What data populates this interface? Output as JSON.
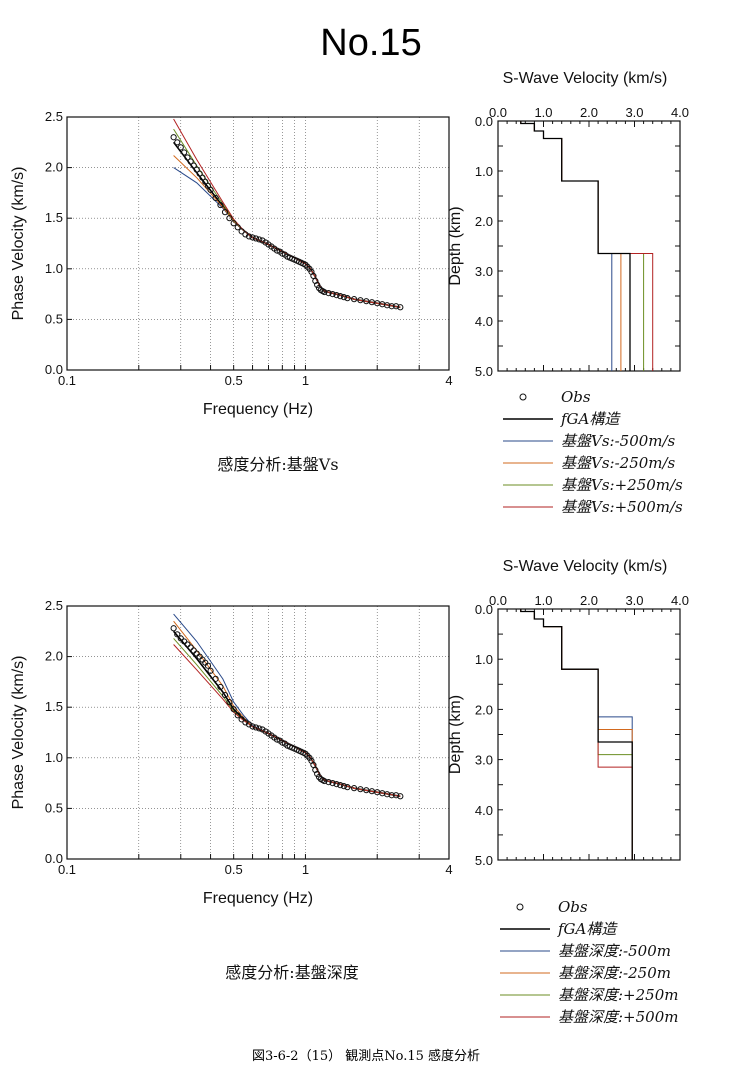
{
  "page_title": "No.15",
  "footer_caption": "図3-6-2（15） 観測点No.15 感度分析",
  "colors": {
    "fga": "#000000",
    "minus500": "#2a4a8a",
    "minus250": "#d2691e",
    "plus250": "#6b8e23",
    "plus500": "#b22222",
    "obs": "#111111"
  },
  "chart_data": [
    {
      "id": "top-dispersion",
      "type": "line",
      "xlabel": "Frequency (Hz)",
      "ylabel": "Phase Velocity (km/s)",
      "xscale": "log",
      "xlim": [
        0.1,
        4
      ],
      "ylim": [
        0,
        2.5
      ],
      "xticks": [
        "0.1",
        "0.5",
        "1",
        "4"
      ],
      "yticks": [
        "0.0",
        "0.5",
        "1.0",
        "1.5",
        "2.0",
        "2.5"
      ],
      "grid": true,
      "caption": "感度分析:基盤Vs",
      "obs": {
        "x": [
          0.28,
          0.29,
          0.3,
          0.31,
          0.32,
          0.33,
          0.34,
          0.35,
          0.36,
          0.37,
          0.38,
          0.39,
          0.4,
          0.42,
          0.44,
          0.46,
          0.48,
          0.5,
          0.52,
          0.54,
          0.56,
          0.58,
          0.6,
          0.62,
          0.64,
          0.66,
          0.68,
          0.7,
          0.72,
          0.74,
          0.76,
          0.78,
          0.8,
          0.82,
          0.84,
          0.86,
          0.88,
          0.9,
          0.92,
          0.94,
          0.96,
          0.98,
          1.0,
          1.02,
          1.04,
          1.06,
          1.08,
          1.1,
          1.12,
          1.14,
          1.16,
          1.18,
          1.2,
          1.25,
          1.3,
          1.35,
          1.4,
          1.45,
          1.5,
          1.6,
          1.7,
          1.8,
          1.9,
          2.0,
          2.1,
          2.2,
          2.3,
          2.4,
          2.5
        ],
        "y": [
          2.3,
          2.25,
          2.2,
          2.15,
          2.1,
          2.06,
          2.02,
          1.98,
          1.94,
          1.9,
          1.86,
          1.82,
          1.78,
          1.7,
          1.63,
          1.56,
          1.5,
          1.45,
          1.41,
          1.37,
          1.34,
          1.32,
          1.31,
          1.3,
          1.29,
          1.28,
          1.26,
          1.24,
          1.22,
          1.2,
          1.18,
          1.17,
          1.15,
          1.14,
          1.12,
          1.11,
          1.1,
          1.09,
          1.08,
          1.07,
          1.06,
          1.05,
          1.04,
          1.02,
          1.0,
          0.97,
          0.93,
          0.88,
          0.84,
          0.81,
          0.79,
          0.78,
          0.77,
          0.76,
          0.75,
          0.74,
          0.73,
          0.72,
          0.71,
          0.7,
          0.69,
          0.68,
          0.67,
          0.66,
          0.65,
          0.64,
          0.63,
          0.63,
          0.62
        ]
      },
      "series": [
        {
          "name": "fGA構造",
          "key": "fga",
          "x": [
            0.28,
            0.35,
            0.45,
            0.5,
            0.55,
            0.6,
            0.7,
            0.8,
            0.9,
            1.0,
            1.05,
            1.1,
            1.15,
            1.2,
            1.4,
            1.6,
            2.0,
            2.5
          ],
          "y": [
            2.25,
            1.95,
            1.62,
            1.47,
            1.38,
            1.31,
            1.24,
            1.17,
            1.11,
            1.05,
            1.0,
            0.92,
            0.83,
            0.78,
            0.74,
            0.7,
            0.66,
            0.62
          ]
        },
        {
          "name": "基盤Vs:-500m/s",
          "key": "minus500",
          "x": [
            0.28,
            0.35,
            0.45,
            0.5,
            0.55,
            0.6,
            0.7,
            0.8,
            0.9,
            1.0,
            1.05,
            1.1,
            1.15,
            1.2,
            1.4,
            1.6,
            2.0,
            2.5
          ],
          "y": [
            2.0,
            1.85,
            1.6,
            1.47,
            1.38,
            1.31,
            1.24,
            1.17,
            1.11,
            1.05,
            1.0,
            0.92,
            0.83,
            0.78,
            0.74,
            0.7,
            0.66,
            0.62
          ]
        },
        {
          "name": "基盤Vs:-250m/s",
          "key": "minus250",
          "x": [
            0.28,
            0.35,
            0.45,
            0.5,
            0.55,
            0.6,
            0.7,
            0.8,
            0.9,
            1.0,
            1.05,
            1.1,
            1.15,
            1.2,
            1.4,
            1.6,
            2.0,
            2.5
          ],
          "y": [
            2.12,
            1.9,
            1.61,
            1.47,
            1.38,
            1.31,
            1.24,
            1.17,
            1.11,
            1.05,
            1.0,
            0.92,
            0.83,
            0.78,
            0.74,
            0.7,
            0.66,
            0.62
          ]
        },
        {
          "name": "基盤Vs:+250m/s",
          "key": "plus250",
          "x": [
            0.28,
            0.35,
            0.45,
            0.5,
            0.55,
            0.6,
            0.7,
            0.8,
            0.9,
            1.0,
            1.05,
            1.1,
            1.15,
            1.2,
            1.4,
            1.6,
            2.0,
            2.5
          ],
          "y": [
            2.38,
            2.02,
            1.64,
            1.48,
            1.38,
            1.31,
            1.24,
            1.17,
            1.11,
            1.05,
            1.0,
            0.92,
            0.83,
            0.78,
            0.74,
            0.7,
            0.66,
            0.62
          ]
        },
        {
          "name": "基盤Vs:+500m/s",
          "key": "plus500",
          "x": [
            0.28,
            0.35,
            0.45,
            0.5,
            0.55,
            0.6,
            0.7,
            0.8,
            0.9,
            1.0,
            1.05,
            1.1,
            1.15,
            1.2,
            1.4,
            1.6,
            2.0,
            2.5
          ],
          "y": [
            2.48,
            2.08,
            1.66,
            1.49,
            1.38,
            1.31,
            1.24,
            1.17,
            1.11,
            1.05,
            1.0,
            0.92,
            0.83,
            0.78,
            0.74,
            0.7,
            0.66,
            0.62
          ]
        }
      ]
    },
    {
      "id": "top-profile",
      "type": "line",
      "title": "S-Wave Velocity (km/s)",
      "ylabel": "Depth (km)",
      "xlim": [
        0,
        4
      ],
      "ylim": [
        0,
        5
      ],
      "xticks": [
        "0.0",
        "1.0",
        "2.0",
        "3.0",
        "4.0"
      ],
      "yticks": [
        "0.0",
        "1.0",
        "2.0",
        "3.0",
        "4.0",
        "5.0"
      ],
      "series": [
        {
          "key": "fga",
          "v": [
            0.5,
            0.8,
            1.0,
            1.4,
            2.2,
            2.9
          ],
          "depth_bottoms": [
            0.05,
            0.2,
            0.35,
            1.2,
            2.65,
            5.0
          ]
        },
        {
          "key": "minus500",
          "v": [
            0.5,
            0.8,
            1.0,
            1.4,
            2.2,
            2.5
          ],
          "depth_bottoms": [
            0.05,
            0.2,
            0.35,
            1.2,
            2.65,
            5.0
          ]
        },
        {
          "key": "minus250",
          "v": [
            0.5,
            0.8,
            1.0,
            1.4,
            2.2,
            2.7
          ],
          "depth_bottoms": [
            0.05,
            0.2,
            0.35,
            1.2,
            2.65,
            5.0
          ]
        },
        {
          "key": "plus250",
          "v": [
            0.5,
            0.8,
            1.0,
            1.4,
            2.2,
            3.2
          ],
          "depth_bottoms": [
            0.05,
            0.2,
            0.35,
            1.2,
            2.65,
            5.0
          ]
        },
        {
          "key": "plus500",
          "v": [
            0.5,
            0.8,
            1.0,
            1.4,
            2.2,
            3.4
          ],
          "depth_bottoms": [
            0.05,
            0.2,
            0.35,
            1.2,
            2.65,
            5.0
          ]
        }
      ]
    },
    {
      "id": "bottom-dispersion",
      "type": "line",
      "xlabel": "Frequency (Hz)",
      "ylabel": "Phase Velocity (km/s)",
      "xscale": "log",
      "xlim": [
        0.1,
        4
      ],
      "ylim": [
        0,
        2.5
      ],
      "xticks": [
        "0.1",
        "0.5",
        "1",
        "4"
      ],
      "yticks": [
        "0.0",
        "0.5",
        "1.0",
        "1.5",
        "2.0",
        "2.5"
      ],
      "grid": true,
      "caption": "感度分析:基盤深度",
      "obs": {
        "x": [
          0.28,
          0.29,
          0.3,
          0.31,
          0.32,
          0.33,
          0.34,
          0.35,
          0.36,
          0.37,
          0.38,
          0.39,
          0.4,
          0.42,
          0.44,
          0.46,
          0.48,
          0.5,
          0.52,
          0.54,
          0.56,
          0.58,
          0.6,
          0.62,
          0.64,
          0.66,
          0.68,
          0.7,
          0.72,
          0.74,
          0.76,
          0.78,
          0.8,
          0.82,
          0.84,
          0.86,
          0.88,
          0.9,
          0.92,
          0.94,
          0.96,
          0.98,
          1.0,
          1.02,
          1.04,
          1.06,
          1.08,
          1.1,
          1.12,
          1.14,
          1.16,
          1.18,
          1.2,
          1.25,
          1.3,
          1.35,
          1.4,
          1.45,
          1.5,
          1.6,
          1.7,
          1.8,
          1.9,
          2.0,
          2.1,
          2.2,
          2.3,
          2.4,
          2.5
        ],
        "y": [
          2.28,
          2.22,
          2.18,
          2.15,
          2.12,
          2.09,
          2.06,
          2.03,
          2.0,
          1.97,
          1.94,
          1.91,
          1.86,
          1.78,
          1.7,
          1.62,
          1.55,
          1.48,
          1.42,
          1.38,
          1.35,
          1.33,
          1.31,
          1.3,
          1.29,
          1.28,
          1.26,
          1.24,
          1.22,
          1.2,
          1.18,
          1.17,
          1.15,
          1.14,
          1.12,
          1.11,
          1.1,
          1.09,
          1.08,
          1.07,
          1.06,
          1.05,
          1.04,
          1.02,
          1.0,
          0.97,
          0.93,
          0.88,
          0.84,
          0.81,
          0.79,
          0.78,
          0.77,
          0.76,
          0.75,
          0.74,
          0.73,
          0.72,
          0.71,
          0.7,
          0.69,
          0.68,
          0.67,
          0.66,
          0.65,
          0.64,
          0.63,
          0.63,
          0.62
        ]
      },
      "series": [
        {
          "name": "fGA構造",
          "key": "fga",
          "x": [
            0.28,
            0.35,
            0.45,
            0.5,
            0.55,
            0.6,
            0.7,
            0.8,
            0.9,
            1.0,
            1.05,
            1.1,
            1.15,
            1.2,
            1.4,
            1.6,
            2.0,
            2.5
          ],
          "y": [
            2.25,
            1.98,
            1.65,
            1.48,
            1.38,
            1.31,
            1.24,
            1.17,
            1.11,
            1.05,
            1.0,
            0.92,
            0.83,
            0.78,
            0.74,
            0.7,
            0.66,
            0.62
          ]
        },
        {
          "name": "基盤深度:-500m",
          "key": "minus500",
          "x": [
            0.28,
            0.35,
            0.45,
            0.5,
            0.55,
            0.6,
            0.7,
            0.8,
            0.9,
            1.0,
            1.05,
            1.1,
            1.15,
            1.2,
            1.4,
            1.6,
            2.0,
            2.5
          ],
          "y": [
            2.42,
            2.15,
            1.78,
            1.55,
            1.42,
            1.32,
            1.24,
            1.17,
            1.11,
            1.05,
            1.0,
            0.92,
            0.83,
            0.78,
            0.74,
            0.7,
            0.66,
            0.62
          ]
        },
        {
          "name": "基盤深度:-250m",
          "key": "minus250",
          "x": [
            0.28,
            0.35,
            0.45,
            0.5,
            0.55,
            0.6,
            0.7,
            0.8,
            0.9,
            1.0,
            1.05,
            1.1,
            1.15,
            1.2,
            1.4,
            1.6,
            2.0,
            2.5
          ],
          "y": [
            2.35,
            2.06,
            1.71,
            1.51,
            1.4,
            1.31,
            1.24,
            1.17,
            1.11,
            1.05,
            1.0,
            0.92,
            0.83,
            0.78,
            0.74,
            0.7,
            0.66,
            0.62
          ]
        },
        {
          "name": "基盤深度:+250m",
          "key": "plus250",
          "x": [
            0.28,
            0.35,
            0.45,
            0.5,
            0.55,
            0.6,
            0.7,
            0.8,
            0.9,
            1.0,
            1.05,
            1.1,
            1.15,
            1.2,
            1.4,
            1.6,
            2.0,
            2.5
          ],
          "y": [
            2.18,
            1.92,
            1.61,
            1.46,
            1.37,
            1.31,
            1.24,
            1.17,
            1.11,
            1.05,
            1.0,
            0.92,
            0.83,
            0.78,
            0.74,
            0.7,
            0.66,
            0.62
          ]
        },
        {
          "name": "基盤深度:+500m",
          "key": "plus500",
          "x": [
            0.28,
            0.35,
            0.45,
            0.5,
            0.55,
            0.6,
            0.7,
            0.8,
            0.9,
            1.0,
            1.05,
            1.1,
            1.15,
            1.2,
            1.4,
            1.6,
            2.0,
            2.5
          ],
          "y": [
            2.12,
            1.87,
            1.58,
            1.45,
            1.37,
            1.31,
            1.24,
            1.17,
            1.11,
            1.05,
            1.0,
            0.92,
            0.83,
            0.78,
            0.74,
            0.7,
            0.66,
            0.62
          ]
        }
      ]
    },
    {
      "id": "bottom-profile",
      "type": "line",
      "title": "S-Wave Velocity (km/s)",
      "ylabel": "Depth (km)",
      "xlim": [
        0,
        4
      ],
      "ylim": [
        0,
        5
      ],
      "xticks": [
        "0.0",
        "1.0",
        "2.0",
        "3.0",
        "4.0"
      ],
      "yticks": [
        "0.0",
        "1.0",
        "2.0",
        "3.0",
        "4.0",
        "5.0"
      ],
      "series": [
        {
          "key": "fga",
          "v": [
            0.5,
            0.8,
            1.0,
            1.4,
            2.2,
            2.95
          ],
          "depth_bottoms": [
            0.05,
            0.2,
            0.35,
            1.2,
            2.65,
            5.0
          ]
        },
        {
          "key": "minus500",
          "v": [
            0.5,
            0.8,
            1.0,
            1.4,
            2.2,
            2.95
          ],
          "depth_bottoms": [
            0.05,
            0.2,
            0.35,
            1.2,
            2.15,
            5.0
          ]
        },
        {
          "key": "minus250",
          "v": [
            0.5,
            0.8,
            1.0,
            1.4,
            2.2,
            2.95
          ],
          "depth_bottoms": [
            0.05,
            0.2,
            0.35,
            1.2,
            2.4,
            5.0
          ]
        },
        {
          "key": "plus250",
          "v": [
            0.5,
            0.8,
            1.0,
            1.4,
            2.2,
            2.95
          ],
          "depth_bottoms": [
            0.05,
            0.2,
            0.35,
            1.2,
            2.9,
            5.0
          ]
        },
        {
          "key": "plus500",
          "v": [
            0.5,
            0.8,
            1.0,
            1.4,
            2.2,
            2.95
          ],
          "depth_bottoms": [
            0.05,
            0.2,
            0.35,
            1.2,
            3.15,
            5.0
          ]
        }
      ]
    }
  ],
  "legends": [
    {
      "id": "top-legend",
      "items": [
        {
          "key": "obs",
          "label": "Obs"
        },
        {
          "key": "fga",
          "label": "fGA構造"
        },
        {
          "key": "minus500",
          "label": "基盤Vs:-500m/s"
        },
        {
          "key": "minus250",
          "label": "基盤Vs:-250m/s"
        },
        {
          "key": "plus250",
          "label": "基盤Vs:+250m/s"
        },
        {
          "key": "plus500",
          "label": "基盤Vs:+500m/s"
        }
      ]
    },
    {
      "id": "bottom-legend",
      "items": [
        {
          "key": "obs",
          "label": "Obs"
        },
        {
          "key": "fga",
          "label": "fGA構造"
        },
        {
          "key": "minus500",
          "label": "基盤深度:-500m"
        },
        {
          "key": "minus250",
          "label": "基盤深度:-250m"
        },
        {
          "key": "plus250",
          "label": "基盤深度:+250m"
        },
        {
          "key": "plus500",
          "label": "基盤深度:+500m"
        }
      ]
    }
  ]
}
